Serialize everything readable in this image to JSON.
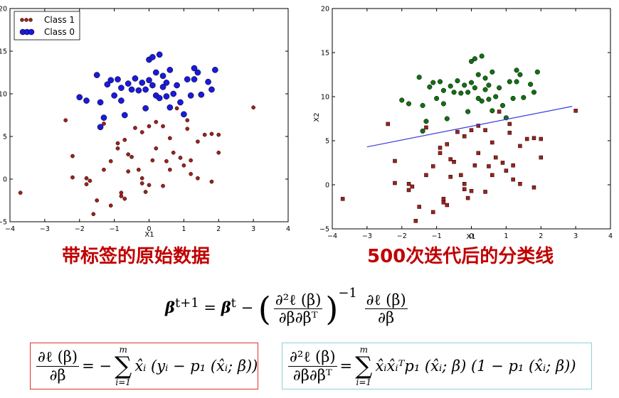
{
  "chart_data": [
    {
      "type": "scatter",
      "xlabel": "X1",
      "ylabel": "",
      "xlim": [
        -4,
        4
      ],
      "ylim": [
        -5,
        20
      ],
      "xticks": [
        "−4",
        "−3",
        "−2",
        "−1",
        "0",
        "1",
        "2",
        "3",
        "4"
      ],
      "yticks": [
        "−5",
        "0",
        "5",
        "10",
        "15",
        "20"
      ],
      "legend": "top-left",
      "series": [
        {
          "name": "Class 1",
          "color": "#a3201a",
          "marker": "circle-small",
          "points": [
            [
              -3.7,
              -1.6
            ],
            [
              -2.4,
              6.9
            ],
            [
              -2.2,
              2.7
            ],
            [
              -2.2,
              0.2
            ],
            [
              -1.8,
              -0.6
            ],
            [
              -1.8,
              0.1
            ],
            [
              -1.7,
              -0.2
            ],
            [
              -1.6,
              -4.1
            ],
            [
              -1.5,
              -2.5
            ],
            [
              -1.3,
              6.5
            ],
            [
              -1.3,
              1.1
            ],
            [
              -1.1,
              -3.1
            ],
            [
              -1.1,
              2.1
            ],
            [
              -0.9,
              4.2
            ],
            [
              -0.9,
              3.6
            ],
            [
              -0.8,
              -1.6
            ],
            [
              -0.8,
              -2.0
            ],
            [
              -0.7,
              -2.3
            ],
            [
              -0.7,
              4.6
            ],
            [
              -0.6,
              0.9
            ],
            [
              -0.6,
              2.9
            ],
            [
              -0.5,
              2.6
            ],
            [
              -0.4,
              6.0
            ],
            [
              -0.3,
              1.1
            ],
            [
              -0.2,
              5.5
            ],
            [
              -0.2,
              0.1
            ],
            [
              -0.2,
              -0.5
            ],
            [
              -0.1,
              -1.5
            ],
            [
              0.0,
              6.2
            ],
            [
              0.0,
              -0.7
            ],
            [
              0.1,
              2.2
            ],
            [
              0.2,
              6.7
            ],
            [
              0.2,
              3.6
            ],
            [
              0.4,
              6.2
            ],
            [
              0.4,
              -0.8
            ],
            [
              0.5,
              2.1
            ],
            [
              0.6,
              1.1
            ],
            [
              0.6,
              4.8
            ],
            [
              0.7,
              3.1
            ],
            [
              0.8,
              8.3
            ],
            [
              0.9,
              2.5
            ],
            [
              1.0,
              1.6
            ],
            [
              1.1,
              6.9
            ],
            [
              1.1,
              5.9
            ],
            [
              1.2,
              0.6
            ],
            [
              1.2,
              2.2
            ],
            [
              1.4,
              4.4
            ],
            [
              1.4,
              0.1
            ],
            [
              1.6,
              5.2
            ],
            [
              1.8,
              5.3
            ],
            [
              2.0,
              3.1
            ],
            [
              2.0,
              5.2
            ],
            [
              3.0,
              8.4
            ],
            [
              1.8,
              -0.3
            ]
          ]
        },
        {
          "name": "Class 0",
          "color": "#1a1adc",
          "marker": "circle-large",
          "points": [
            [
              -2.0,
              9.6
            ],
            [
              -1.8,
              9.2
            ],
            [
              -1.5,
              12.2
            ],
            [
              -1.4,
              6.1
            ],
            [
              -1.3,
              7.2
            ],
            [
              -1.2,
              11.1
            ],
            [
              -1.1,
              11.6
            ],
            [
              -1.0,
              9.8
            ],
            [
              -0.9,
              11.7
            ],
            [
              -0.8,
              10.7
            ],
            [
              -0.7,
              7.5
            ],
            [
              -0.6,
              11.2
            ],
            [
              -0.5,
              10.5
            ],
            [
              -0.4,
              11.8
            ],
            [
              -0.3,
              10.4
            ],
            [
              -0.2,
              11.3
            ],
            [
              -0.1,
              8.3
            ],
            [
              -0.1,
              10.5
            ],
            [
              0.0,
              14.0
            ],
            [
              0.0,
              11.6
            ],
            [
              0.1,
              14.3
            ],
            [
              0.1,
              11.0
            ],
            [
              0.2,
              12.5
            ],
            [
              0.2,
              9.8
            ],
            [
              0.3,
              14.6
            ],
            [
              0.3,
              9.5
            ],
            [
              0.4,
              12.1
            ],
            [
              0.4,
              10.8
            ],
            [
              0.5,
              11.3
            ],
            [
              0.5,
              9.7
            ],
            [
              0.6,
              12.8
            ],
            [
              0.6,
              8.4
            ],
            [
              0.7,
              10.0
            ],
            [
              0.8,
              11.0
            ],
            [
              0.9,
              9.0
            ],
            [
              1.0,
              7.6
            ],
            [
              1.1,
              11.7
            ],
            [
              1.2,
              9.8
            ],
            [
              1.3,
              13.0
            ],
            [
              1.3,
              11.7
            ],
            [
              1.4,
              12.5
            ],
            [
              1.5,
              9.9
            ],
            [
              1.7,
              11.4
            ],
            [
              1.8,
              10.5
            ],
            [
              1.9,
              12.8
            ],
            [
              -1.4,
              9.0
            ],
            [
              -0.8,
              9.2
            ]
          ]
        }
      ]
    },
    {
      "type": "scatter",
      "xlabel": "X1",
      "ylabel": "X2",
      "xlim": [
        -4,
        4
      ],
      "ylim": [
        -5,
        20
      ],
      "xticks": [
        "−4",
        "−3",
        "−2",
        "−1",
        "0",
        "1",
        "2",
        "3",
        "4"
      ],
      "yticks": [
        "−5",
        "0",
        "5",
        "10",
        "15",
        "20"
      ],
      "series": [
        {
          "color": "#a3201a",
          "marker": "square",
          "points": "same-as-class-1"
        },
        {
          "color": "#127012",
          "marker": "circle",
          "points": "same-as-class-0"
        },
        {
          "color": "#3b3bdc",
          "marker": "line",
          "points": [
            [
              -3.0,
              4.3
            ],
            [
              2.9,
              8.9
            ]
          ]
        }
      ]
    }
  ],
  "captions": {
    "left": "带标签的原始数据",
    "right_bold": "500",
    "right_rest": "次迭代后的分类线"
  },
  "formulas": {
    "main_lhs": "β",
    "main_sup": "t+1",
    "main_eq": "=",
    "main_rhs_sup": "t",
    "minus": "−",
    "inv": "−1",
    "hess_num": "∂²ℓ (β)",
    "hess_den": "∂β∂βᵀ",
    "grad_num": "∂ℓ (β)",
    "grad_den": "∂β",
    "grad_rhs": "x̂ᵢ (yᵢ − p₁ (x̂ᵢ; β))",
    "hess_rhs": "x̂ᵢx̂ᵢᵀp₁ (x̂ᵢ; β) (1 − p₁ (x̂ᵢ; β))",
    "sum_upper": "m",
    "sum_lower": "i=1"
  }
}
